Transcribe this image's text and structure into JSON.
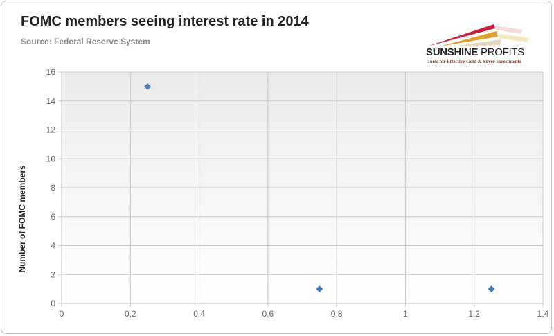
{
  "chart_data": {
    "type": "scatter",
    "title": "FOMC members seeing interest rate in 2014",
    "subtitle": "Source: Federal Reserve System",
    "xlabel": "",
    "ylabel": "Number of FOMC members",
    "xlim": [
      0,
      1.4
    ],
    "ylim": [
      0,
      16
    ],
    "x_ticks": [
      "0",
      "0,2",
      "0,4",
      "0,6",
      "0,8",
      "1",
      "1,2",
      "1,4"
    ],
    "y_ticks": [
      "0",
      "2",
      "4",
      "6",
      "8",
      "10",
      "12",
      "14",
      "16"
    ],
    "grid": true,
    "legend": "none",
    "marker": "diamond",
    "marker_color": "#4a7ebb",
    "points": [
      {
        "x": 0.25,
        "y": 15
      },
      {
        "x": 0.75,
        "y": 1
      },
      {
        "x": 1.25,
        "y": 1
      }
    ]
  },
  "logo": {
    "name_bold": "SUNSHINE",
    "name_regular": " PROFITS",
    "tagline": "Tools for Effective Gold & Silver Investments"
  }
}
